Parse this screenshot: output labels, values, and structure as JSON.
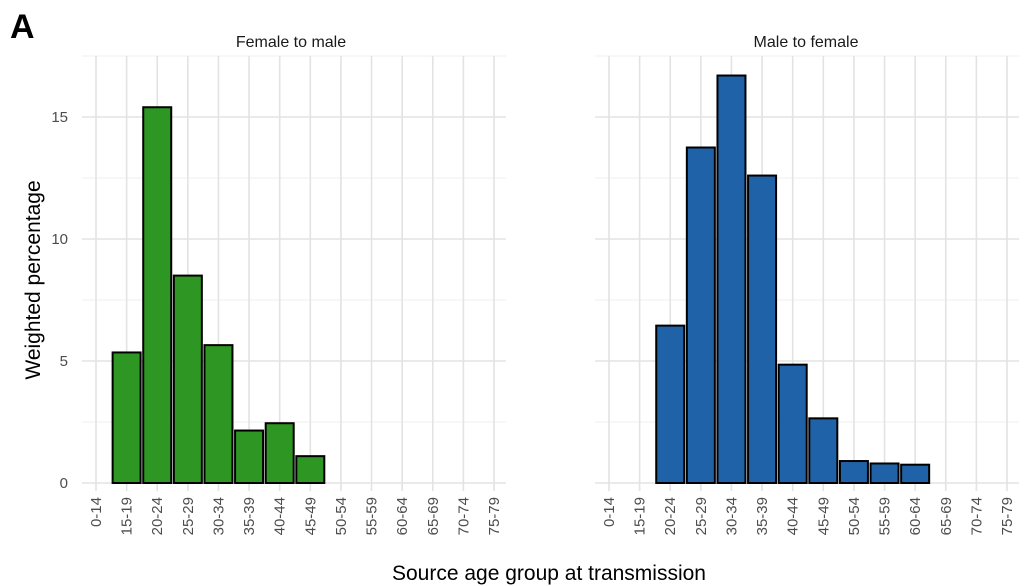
{
  "panel_label": "A",
  "chart_data": {
    "type": "bar",
    "xlabel": "Source age group at transmission",
    "ylabel": "Weighted percentage",
    "ylim": [
      0,
      17.5
    ],
    "yticks": [
      0,
      5,
      10,
      15
    ],
    "ytick_labels": [
      "0",
      "5",
      "10",
      "15"
    ],
    "grid": true,
    "categories": [
      "0-14",
      "15-19",
      "20-24",
      "25-29",
      "30-34",
      "35-39",
      "40-44",
      "45-49",
      "50-54",
      "55-59",
      "60-64",
      "65-69",
      "70-74",
      "75-79"
    ],
    "bar_outline_color": "#000000",
    "facets": [
      {
        "name": "Female to male",
        "color": "#2e9622",
        "values": [
          null,
          5.35,
          15.4,
          8.5,
          5.65,
          2.15,
          2.45,
          1.1,
          null,
          null,
          null,
          null,
          null,
          null
        ]
      },
      {
        "name": "Male to female",
        "color": "#1f62a8",
        "values": [
          null,
          null,
          6.45,
          13.75,
          16.7,
          12.6,
          4.85,
          2.65,
          0.9,
          0.8,
          0.75,
          null,
          null,
          null
        ]
      }
    ]
  }
}
